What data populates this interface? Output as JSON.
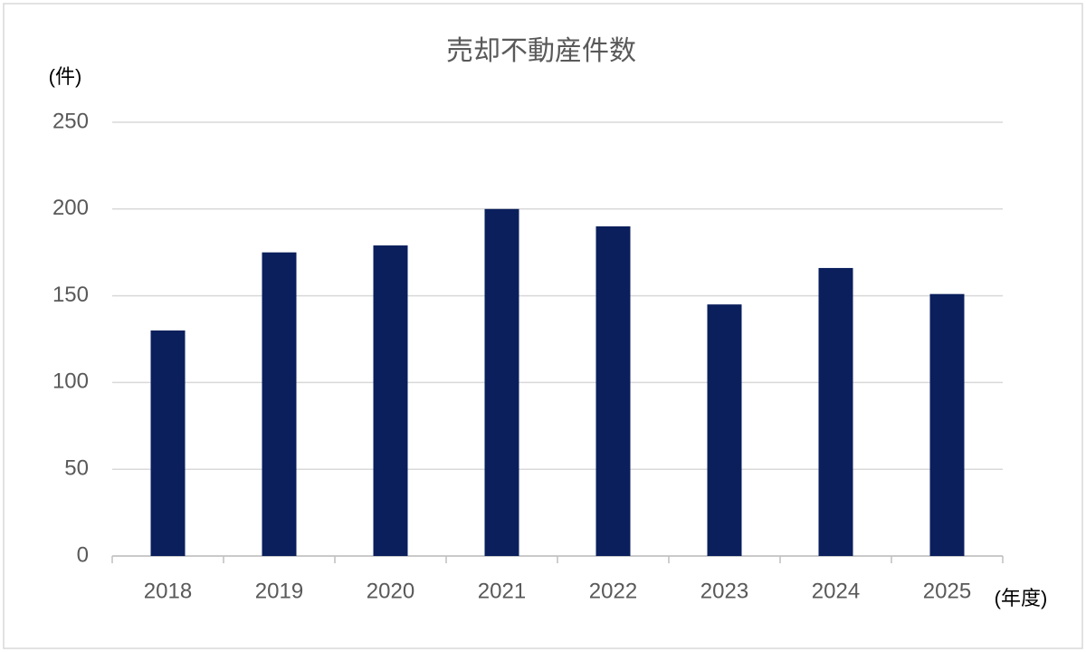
{
  "chart_data": {
    "type": "bar",
    "title": "売却不動産件数",
    "y_label": "(件)",
    "x_label": "(年度)",
    "categories": [
      "2018",
      "2019",
      "2020",
      "2021",
      "2022",
      "2023",
      "2024",
      "2025"
    ],
    "values": [
      130,
      175,
      179,
      200,
      190,
      145,
      166,
      151
    ],
    "color": "#0a1f5c",
    "ylim": [
      0,
      250
    ],
    "yticks": [
      0,
      50,
      100,
      150,
      200,
      250
    ],
    "grid": true
  }
}
